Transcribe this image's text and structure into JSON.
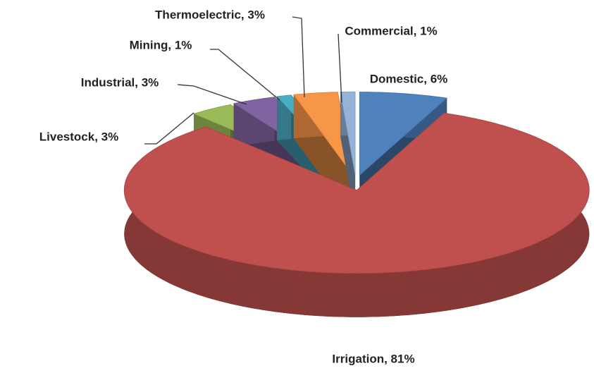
{
  "chart_data": {
    "type": "pie",
    "values": [
      6,
      81,
      3,
      3,
      1,
      3,
      1
    ],
    "value_labels": [
      "Domestic, 6%",
      "Irrigation, 81%",
      "Livestock, 3%",
      "Industrial, 3%",
      "Mining, 1%",
      "Thermoelectric, 3%",
      "Commercial, 1%"
    ],
    "colors": [
      "#4f81bd",
      "#c0504d",
      "#9bbb59",
      "#8064a2",
      "#4bacc6",
      "#f79646",
      "#95b3d7"
    ]
  }
}
